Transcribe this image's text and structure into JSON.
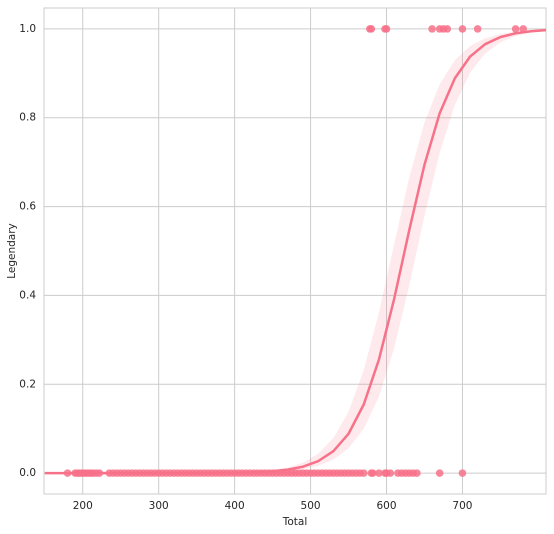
{
  "chart_data": {
    "type": "logistic-regression",
    "x_label": "Total",
    "y_label": "Legendary",
    "xlim": [
      149,
      810
    ],
    "ylim": [
      -0.047,
      1.047
    ],
    "xticks": [
      200,
      300,
      400,
      500,
      600,
      700
    ],
    "yticks": [
      {
        "value": 0,
        "label": "0.0"
      },
      {
        "value": 0.2,
        "label": "0.2"
      },
      {
        "value": 0.4,
        "label": "0.4"
      },
      {
        "value": 0.6,
        "label": "0.6"
      },
      {
        "value": 0.8,
        "label": "0.8"
      },
      {
        "value": 1.0,
        "label": "1.0"
      }
    ],
    "grid": true,
    "series": [
      {
        "type": "scatter",
        "color": "#f77189",
        "x": [
          180,
          190,
          193,
          196,
          199,
          202,
          205,
          208,
          211,
          214,
          218,
          222,
          235,
          240,
          245,
          250,
          255,
          260,
          265,
          270,
          275,
          280,
          285,
          290,
          295,
          300,
          305,
          310,
          315,
          320,
          325,
          330,
          335,
          340,
          345,
          350,
          355,
          360,
          365,
          370,
          375,
          380,
          385,
          390,
          395,
          400,
          405,
          410,
          415,
          420,
          425,
          430,
          435,
          440,
          445,
          450,
          455,
          460,
          465,
          470,
          475,
          480,
          485,
          490,
          495,
          500,
          505,
          510,
          515,
          520,
          525,
          530,
          535,
          540,
          545,
          550,
          555,
          560,
          565,
          570,
          580,
          582,
          590,
          598,
          600,
          605,
          615,
          620,
          625,
          630,
          635,
          640,
          670,
          700
        ],
        "values": [
          0,
          0,
          0,
          0,
          0,
          0,
          0,
          0,
          0,
          0,
          0,
          0,
          0,
          0,
          0,
          0,
          0,
          0,
          0,
          0,
          0,
          0,
          0,
          0,
          0,
          0,
          0,
          0,
          0,
          0,
          0,
          0,
          0,
          0,
          0,
          0,
          0,
          0,
          0,
          0,
          0,
          0,
          0,
          0,
          0,
          0,
          0,
          0,
          0,
          0,
          0,
          0,
          0,
          0,
          0,
          0,
          0,
          0,
          0,
          0,
          0,
          0,
          0,
          0,
          0,
          0,
          0,
          0,
          0,
          0,
          0,
          0,
          0,
          0,
          0,
          0,
          0,
          0,
          0,
          0,
          0,
          0,
          0,
          0,
          0,
          0,
          0,
          0,
          0,
          0,
          0,
          0,
          0,
          0
        ]
      },
      {
        "type": "scatter",
        "color": "#f77189",
        "x": [
          578,
          580,
          598,
          600,
          660,
          670,
          675,
          680,
          700,
          720,
          770,
          780
        ],
        "values": [
          1,
          1,
          1,
          1,
          1,
          1,
          1,
          1,
          1,
          1,
          1,
          1
        ]
      },
      {
        "type": "fit",
        "color": "#f77189",
        "x": [
          150,
          170,
          190,
          210,
          230,
          250,
          270,
          290,
          310,
          330,
          350,
          370,
          390,
          410,
          430,
          450,
          470,
          490,
          510,
          530,
          550,
          570,
          590,
          610,
          630,
          650,
          670,
          690,
          710,
          730,
          750,
          770,
          790,
          810
        ],
        "values": [
          0,
          0,
          0,
          0,
          0,
          0,
          0,
          0,
          0.0001,
          0.0001,
          0.0002,
          0.0003,
          0.0006,
          0.0012,
          0.0022,
          0.0042,
          0.0078,
          0.0145,
          0.0269,
          0.0493,
          0.0886,
          0.1545,
          0.2554,
          0.3917,
          0.5474,
          0.6942,
          0.81,
          0.8889,
          0.9376,
          0.9658,
          0.9815,
          0.99,
          0.9947,
          0.9972
        ],
        "lower": [
          0,
          0,
          0,
          0,
          0,
          0,
          0,
          0,
          0,
          0.0001,
          0.0001,
          0.0002,
          0.0004,
          0.0007,
          0.0013,
          0.0025,
          0.0047,
          0.0088,
          0.0165,
          0.0305,
          0.0557,
          0.0998,
          0.1722,
          0.2808,
          0.4231,
          0.5793,
          0.7211,
          0.8292,
          0.9011,
          0.9448,
          0.9698,
          0.9837,
          0.9913,
          0.9953
        ],
        "upper": [
          0,
          0,
          0,
          0,
          0,
          0,
          0,
          0,
          0.0001,
          0.0002,
          0.0003,
          0.0006,
          0.001,
          0.0019,
          0.0037,
          0.0068,
          0.0127,
          0.0237,
          0.0435,
          0.0787,
          0.1382,
          0.2315,
          0.3612,
          0.515,
          0.666,
          0.7892,
          0.8754,
          0.9296,
          0.9612,
          0.979,
          0.9887,
          0.9939,
          0.9968,
          0.9983
        ]
      }
    ]
  }
}
